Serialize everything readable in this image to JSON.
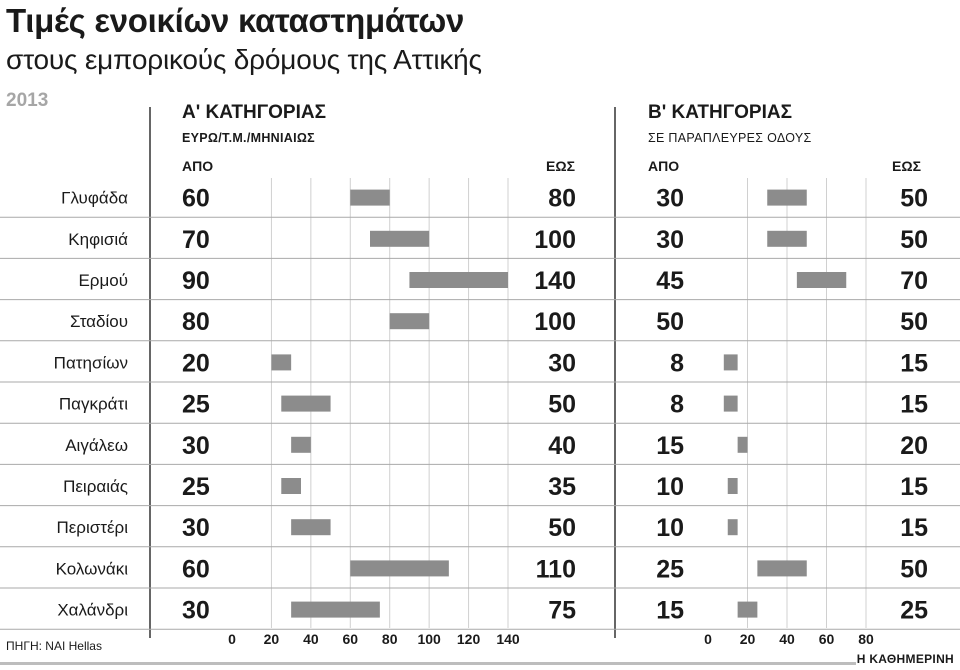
{
  "header": {
    "title": "Τιμές ενοικίων καταστημάτων",
    "subtitle": "στους εμπορικούς δρόμους της Αττικής",
    "year": "2013"
  },
  "section_a": {
    "title": "Α' ΚΑΤΗΓΟΡΙΑΣ",
    "subtitle": "ΕΥΡΩ/Τ.Μ./ΜΗΝΙΑΙΩΣ",
    "from_label": "ΑΠΟ",
    "to_label": "ΕΩΣ"
  },
  "section_b": {
    "title": "Β' ΚΑΤΗΓΟΡΙΑΣ",
    "subtitle": "ΣΕ ΠΑΡΑΠΛΕΥΡΕΣ ΟΔΟΥΣ",
    "from_label": "ΑΠΟ",
    "to_label": "ΕΩΣ"
  },
  "footer": {
    "source": "ΠΗΓΗ: NAI Hellas",
    "brand": "Η ΚΑΘΗΜΕΡΙΝΗ"
  },
  "colors": {
    "bar": "#8c8c8c",
    "rule": "#a9a9a9",
    "grid": "#d0d0d0",
    "text": "#1a1a1a"
  },
  "chart_data": [
    {
      "type": "bar",
      "orientation": "horizontal-range",
      "title": "Α' ΚΑΤΗΓΟΡΙΑΣ",
      "unit": "ΕΥΡΩ/Τ.Μ./ΜΗΝΙΑΙΩΣ",
      "categories": [
        "Γλυφάδα",
        "Κηφισιά",
        "Ερμού",
        "Σταδίου",
        "Πατησίων",
        "Παγκράτι",
        "Αιγάλεω",
        "Πειραιάς",
        "Περιστέρι",
        "Κολωνάκι",
        "Χαλάνδρι"
      ],
      "from": [
        60,
        70,
        90,
        80,
        20,
        25,
        30,
        25,
        30,
        60,
        30
      ],
      "to": [
        80,
        100,
        140,
        100,
        30,
        50,
        40,
        35,
        50,
        110,
        75
      ],
      "xlim": [
        0,
        140
      ],
      "xticks": [
        0,
        20,
        40,
        60,
        80,
        100,
        120,
        140
      ],
      "grid": true
    },
    {
      "type": "bar",
      "orientation": "horizontal-range",
      "title": "Β' ΚΑΤΗΓΟΡΙΑΣ",
      "unit": "ΣΕ ΠΑΡΑΠΛΕΥΡΕΣ ΟΔΟΥΣ",
      "categories": [
        "Γλυφάδα",
        "Κηφισιά",
        "Ερμού",
        "Σταδίου",
        "Πατησίων",
        "Παγκράτι",
        "Αιγάλεω",
        "Πειραιάς",
        "Περιστέρι",
        "Κολωνάκι",
        "Χαλάνδρι"
      ],
      "from": [
        30,
        30,
        45,
        50,
        8,
        8,
        15,
        10,
        10,
        25,
        15
      ],
      "to": [
        50,
        50,
        70,
        50,
        15,
        15,
        20,
        15,
        15,
        50,
        25
      ],
      "xlim": [
        0,
        80
      ],
      "xticks": [
        0,
        20,
        40,
        60,
        80
      ],
      "grid": true
    }
  ]
}
